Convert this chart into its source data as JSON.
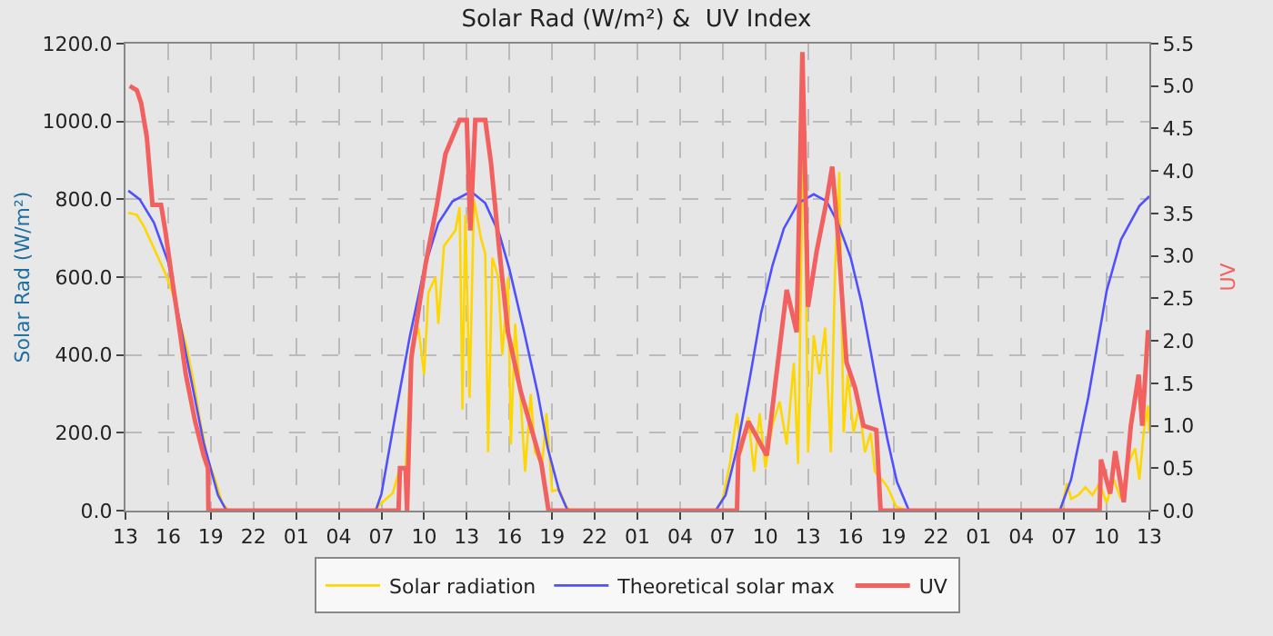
{
  "chart_data": {
    "type": "line",
    "title": "Solar Rad (W/m²) &  UV Index",
    "ylabel": "Solar Rad (W/m²)",
    "y2label": "UV",
    "xlim": [
      "--01-01T13:00",
      "--01-04T13:00"
    ],
    "xticks": [
      {
        "value": "--01-01T13:00",
        "label": "13"
      },
      {
        "value": "--01-01T16:00",
        "label": "16"
      },
      {
        "value": "--01-01T19:00",
        "label": "19"
      },
      {
        "value": "--01-01T22:00",
        "label": "22"
      },
      {
        "value": "--01-02T01:00",
        "label": "01"
      },
      {
        "value": "--01-02T04:00",
        "label": "04"
      },
      {
        "value": "--01-02T07:00",
        "label": "07"
      },
      {
        "value": "--01-02T10:00",
        "label": "10"
      },
      {
        "value": "--01-02T13:00",
        "label": "13"
      },
      {
        "value": "--01-02T16:00",
        "label": "16"
      },
      {
        "value": "--01-02T19:00",
        "label": "19"
      },
      {
        "value": "--01-02T22:00",
        "label": "22"
      },
      {
        "value": "--01-03T01:00",
        "label": "01"
      },
      {
        "value": "--01-03T04:00",
        "label": "04"
      },
      {
        "value": "--01-03T07:00",
        "label": "07"
      },
      {
        "value": "--01-03T10:00",
        "label": "10"
      },
      {
        "value": "--01-03T13:00",
        "label": "13"
      },
      {
        "value": "--01-03T16:00",
        "label": "16"
      },
      {
        "value": "--01-03T19:00",
        "label": "19"
      },
      {
        "value": "--01-03T22:00",
        "label": "22"
      },
      {
        "value": "--01-04T01:00",
        "label": "01"
      },
      {
        "value": "--01-04T04:00",
        "label": "04"
      },
      {
        "value": "--01-04T07:00",
        "label": "07"
      },
      {
        "value": "--01-04T10:00",
        "label": "10"
      },
      {
        "value": "--01-04T13:00",
        "label": "13"
      }
    ],
    "ylim": [
      0,
      1200
    ],
    "yticks": [
      {
        "value": 0,
        "label": "0.0"
      },
      {
        "value": 200,
        "label": "200.0"
      },
      {
        "value": 400,
        "label": "400.0"
      },
      {
        "value": 600,
        "label": "600.0"
      },
      {
        "value": 800,
        "label": "800.0"
      },
      {
        "value": 1000,
        "label": "1000.0"
      },
      {
        "value": 1200,
        "label": "1200.0"
      }
    ],
    "y2lim": [
      0,
      5.5
    ],
    "y2ticks": [
      {
        "value": 0,
        "label": "0.0"
      },
      {
        "value": 0.5,
        "label": "0.5"
      },
      {
        "value": 1,
        "label": "1.0"
      },
      {
        "value": 1.5,
        "label": "1.5"
      },
      {
        "value": 2,
        "label": "2.0"
      },
      {
        "value": 2.5,
        "label": "2.5"
      },
      {
        "value": 3,
        "label": "3.0"
      },
      {
        "value": 3.5,
        "label": "3.5"
      },
      {
        "value": 4,
        "label": "4.0"
      },
      {
        "value": 4.5,
        "label": "4.5"
      },
      {
        "value": 5,
        "label": "5.0"
      },
      {
        "value": 5.5,
        "label": "5.5"
      }
    ],
    "grid": true,
    "legend": "bottom",
    "marker": "none",
    "line_style": "solid",
    "series": [
      {
        "name": "Solar radiation",
        "color": "#ffd700",
        "x": [
          "--01-01T13:12",
          "--01-01T13:48",
          "--01-01T14:18",
          "--01-01T14:48",
          "--01-01T15:18",
          "--01-01T15:48",
          "--01-01T16:18",
          "--01-01T16:48",
          "--01-01T17:18",
          "--01-01T17:48",
          "--01-01T18:18",
          "--01-01T18:48",
          "--01-01T19:18",
          "--01-01T19:48",
          "--01-01T20:15",
          "--01-02T06:30",
          "--01-02T07:00",
          "--01-02T07:48",
          "--01-02T08:18",
          "--01-02T08:42",
          "--01-02T09:06",
          "--01-02T09:36",
          "--01-02T10:00",
          "--01-02T10:18",
          "--01-02T10:48",
          "--01-02T11:00",
          "--01-02T11:24",
          "--01-02T11:48",
          "--01-02T12:12",
          "--01-02T12:30",
          "--01-02T12:42",
          "--01-02T12:54",
          "--01-02T13:12",
          "--01-02T13:30",
          "--01-02T14:00",
          "--01-02T14:18",
          "--01-02T14:30",
          "--01-02T14:48",
          "--01-02T15:12",
          "--01-02T15:30",
          "--01-02T15:54",
          "--01-02T16:06",
          "--01-02T16:24",
          "--01-02T16:48",
          "--01-02T17:06",
          "--01-02T17:30",
          "--01-02T17:48",
          "--01-02T18:18",
          "--01-02T18:36",
          "--01-02T19:00",
          "--01-02T19:30",
          "--01-02T20:00",
          "--01-02T20:18",
          "--01-03T06:30",
          "--01-03T07:00",
          "--01-03T07:30",
          "--01-03T08:00",
          "--01-03T08:18",
          "--01-03T08:48",
          "--01-03T09:12",
          "--01-03T09:36",
          "--01-03T10:00",
          "--01-03T10:30",
          "--01-03T11:00",
          "--01-03T11:30",
          "--01-03T12:00",
          "--01-03T12:18",
          "--01-03T12:42",
          "--01-03T13:00",
          "--01-03T13:24",
          "--01-03T13:48",
          "--01-03T14:12",
          "--01-03T14:36",
          "--01-03T14:54",
          "--01-03T15:12",
          "--01-03T15:30",
          "--01-03T15:48",
          "--01-03T16:12",
          "--01-03T16:36",
          "--01-03T17:00",
          "--01-03T17:24",
          "--01-03T17:42",
          "--01-03T18:12",
          "--01-03T18:36",
          "--01-03T19:12",
          "--01-03T20:00",
          "--01-04T06:48",
          "--01-04T07:12",
          "--01-04T07:30",
          "--01-04T08:00",
          "--01-04T08:30",
          "--01-04T09:00",
          "--01-04T09:30",
          "--01-04T10:00",
          "--01-04T10:30",
          "--01-04T11:00",
          "--01-04T11:30",
          "--01-04T12:00",
          "--01-04T12:18",
          "--01-04T12:36",
          "--01-04T12:54",
          "--01-04T13:00"
        ],
        "values": [
          765,
          760,
          730,
          690,
          650,
          610,
          560,
          490,
          420,
          330,
          220,
          130,
          80,
          20,
          0,
          0,
          20,
          45,
          110,
          110,
          420,
          470,
          350,
          560,
          600,
          480,
          680,
          700,
          720,
          780,
          260,
          760,
          290,
          800,
          700,
          660,
          150,
          650,
          600,
          400,
          600,
          170,
          480,
          280,
          100,
          300,
          150,
          120,
          250,
          50,
          55,
          10,
          0,
          0,
          30,
          120,
          250,
          150,
          240,
          100,
          250,
          110,
          220,
          280,
          170,
          380,
          120,
          1060,
          150,
          450,
          350,
          470,
          150,
          620,
          870,
          200,
          350,
          200,
          270,
          150,
          200,
          100,
          80,
          60,
          10,
          0,
          0,
          70,
          30,
          40,
          60,
          40,
          70,
          20,
          80,
          30,
          120,
          160,
          80,
          200,
          270,
          200
        ]
      },
      {
        "name": "Theoretical solar max",
        "color": "#5050ff",
        "x": [
          "--01-01T13:12",
          "--01-01T14:00",
          "--01-01T15:00",
          "--01-01T16:00",
          "--01-01T17:15",
          "--01-01T18:30",
          "--01-01T19:30",
          "--01-01T20:06",
          "--01-02T06:36",
          "--01-02T07:00",
          "--01-02T08:00",
          "--01-02T09:00",
          "--01-02T10:00",
          "--01-02T11:00",
          "--01-02T12:00",
          "--01-02T13:18",
          "--01-02T14:18",
          "--01-02T15:18",
          "--01-02T16:00",
          "--01-02T17:00",
          "--01-02T18:00",
          "--01-02T18:42",
          "--01-02T19:30",
          "--01-02T20:06",
          "--01-03T06:30",
          "--01-03T07:12",
          "--01-03T08:00",
          "--01-03T09:00",
          "--01-03T09:42",
          "--01-03T10:30",
          "--01-03T11:18",
          "--01-03T12:18",
          "--01-03T13:24",
          "--01-03T14:18",
          "--01-03T15:06",
          "--01-03T16:00",
          "--01-03T16:45",
          "--01-03T17:24",
          "--01-03T18:00",
          "--01-03T18:36",
          "--01-03T19:15",
          "--01-03T20:06",
          "--01-04T06:42",
          "--01-04T07:30",
          "--01-04T08:42",
          "--01-04T10:00",
          "--01-04T11:00",
          "--01-04T12:18",
          "--01-04T13:00"
        ],
        "values": [
          822,
          800,
          740,
          639,
          404,
          174,
          40,
          0,
          0,
          43,
          250,
          448,
          620,
          739,
          795,
          820,
          790,
          710,
          620,
          465,
          300,
          160,
          50,
          0,
          0,
          40,
          160,
          360,
          508,
          630,
          725,
          790,
          813,
          795,
          739,
          650,
          536,
          410,
          290,
          180,
          74,
          0,
          0,
          80,
          290,
          565,
          696,
          783,
          808
        ]
      },
      {
        "name": "UV",
        "color": "#f26060",
        "axis": "y2",
        "x": [
          "--01-01T13:18",
          "--01-01T13:48",
          "--01-01T14:06",
          "--01-01T14:30",
          "--01-01T14:54",
          "--01-01T15:30",
          "--01-01T15:48",
          "--01-01T16:18",
          "--01-01T16:42",
          "--01-01T17:15",
          "--01-01T17:54",
          "--01-01T18:30",
          "--01-01T18:48",
          "--01-01T18:50",
          "--01-02T08:12",
          "--01-02T08:18",
          "--01-02T08:42",
          "--01-02T08:48",
          "--01-02T09:06",
          "--01-02T10:06",
          "--01-02T10:54",
          "--01-02T11:30",
          "--01-02T12:30",
          "--01-02T13:00",
          "--01-02T13:15",
          "--01-02T13:36",
          "--01-02T14:18",
          "--01-02T14:42",
          "--01-02T15:18",
          "--01-02T15:54",
          "--01-02T16:48",
          "--01-02T17:24",
          "--01-02T18:15",
          "--01-02T18:45",
          "--01-03T08:00",
          "--01-03T08:06",
          "--01-03T08:48",
          "--01-03T10:06",
          "--01-03T10:42",
          "--01-03T11:30",
          "--01-03T12:12",
          "--01-03T12:36",
          "--01-03T13:00",
          "--01-03T13:36",
          "--01-03T14:15",
          "--01-03T14:42",
          "--01-03T15:06",
          "--01-03T15:42",
          "--01-03T16:18",
          "--01-03T16:54",
          "--01-03T17:48",
          "--01-03T18:06",
          "--01-04T09:30",
          "--01-04T09:36",
          "--01-04T10:15",
          "--01-04T10:36",
          "--01-04T11:12",
          "--01-04T11:42",
          "--01-04T12:15",
          "--01-04T12:30",
          "--01-04T12:54",
          "--01-04T13:00"
        ],
        "values": [
          5.0,
          4.95,
          4.8,
          4.4,
          3.6,
          3.6,
          3.3,
          2.7,
          2.25,
          1.6,
          1.05,
          0.65,
          0.5,
          0,
          0,
          0.5,
          0.5,
          0,
          1.8,
          2.9,
          3.6,
          4.2,
          4.6,
          4.6,
          3.3,
          4.6,
          4.6,
          4.1,
          3.05,
          2.1,
          1.4,
          1.05,
          0.55,
          0,
          0,
          0.65,
          1.05,
          0.65,
          1.5,
          2.6,
          2.1,
          5.4,
          2.4,
          3.05,
          3.6,
          4.05,
          3.25,
          1.75,
          1.45,
          1.0,
          0.95,
          0,
          0,
          0.6,
          0.2,
          0.7,
          0.1,
          1.0,
          1.6,
          1.0,
          2.1,
          2.1
        ]
      }
    ]
  }
}
